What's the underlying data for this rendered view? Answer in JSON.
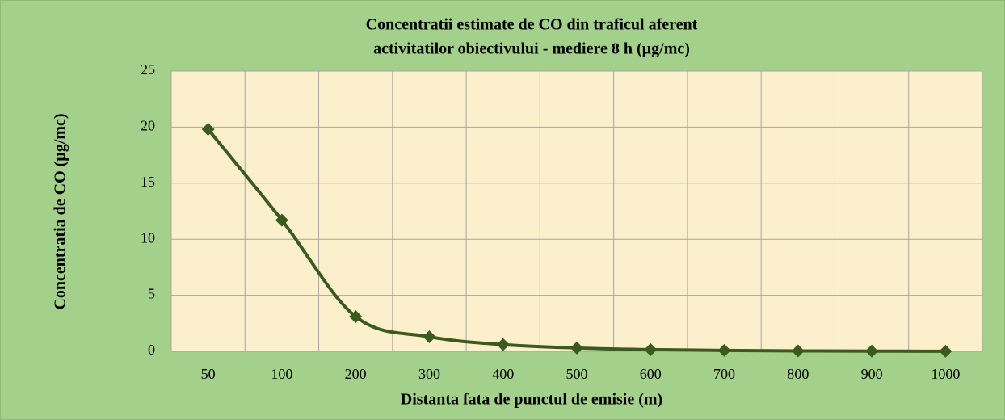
{
  "chart_data": {
    "type": "line",
    "title": [
      "Concentratii estimate de CO din traficul aferent",
      "activitatilor obiectivului  - mediere 8 h (µg/mc)"
    ],
    "x_label": "Distanta fata de punctul de emisie (m)",
    "y_label": "Concentratia de CO (µg/mc)",
    "categories": [
      "50",
      "100",
      "200",
      "300",
      "400",
      "500",
      "600",
      "700",
      "800",
      "900",
      "1000"
    ],
    "series": [
      {
        "name": "CO",
        "color": "#3b5a1f",
        "values": [
          19.8,
          11.7,
          3.1,
          1.3,
          0.6,
          0.3,
          0.15,
          0.08,
          0.04,
          0.02,
          0.01
        ]
      }
    ],
    "ylim": [
      0,
      25
    ],
    "yticks": [
      0,
      5,
      10,
      15,
      20,
      25
    ],
    "grid": true,
    "background": "#a3d08b",
    "plot_background": "#fcefcc",
    "grid_color": "#a6a6a6"
  }
}
